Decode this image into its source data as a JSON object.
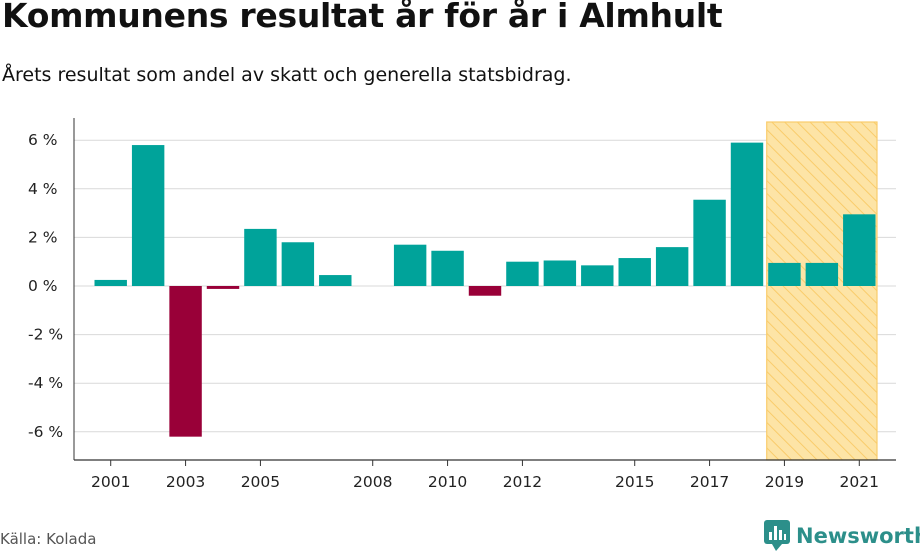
{
  "title": "Kommunens resultat år för år i Almhult",
  "subtitle": "Årets resultat som andel av skatt och generella statsbidrag.",
  "source": "Källa: Kolada",
  "brand": "Newsworthy",
  "colors": {
    "positive": "#00a39a",
    "negative": "#990038",
    "highlight_fill": "#fde4a6",
    "highlight_stripe": "#f9cc6b",
    "grid": "#d9d9d9",
    "axis": "#333333",
    "brand": "#2c8f8a"
  },
  "chart_data": {
    "type": "bar",
    "years": [
      2001,
      2002,
      2003,
      2004,
      2005,
      2006,
      2007,
      2008,
      2009,
      2010,
      2011,
      2012,
      2013,
      2014,
      2015,
      2016,
      2017,
      2018,
      2019,
      2020,
      2021
    ],
    "values": [
      0.25,
      5.8,
      -6.2,
      -0.12,
      2.35,
      1.8,
      0.45,
      null,
      1.7,
      1.45,
      -0.4,
      1.0,
      1.05,
      0.85,
      1.15,
      1.6,
      3.55,
      5.9,
      0.95,
      0.95,
      2.95
    ],
    "x_tick_labels": [
      "2001",
      "2003",
      "2005",
      "2008",
      "2010",
      "2012",
      "2015",
      "2017",
      "2019",
      "2021"
    ],
    "y_ticks": [
      6,
      4,
      2,
      0,
      -2,
      -4,
      -6
    ],
    "y_tick_labels": [
      "6 %",
      "4 %",
      "2 %",
      "0 %",
      "-2 %",
      "-4 %",
      "-6 %"
    ],
    "ylim": [
      -7,
      6.7
    ],
    "highlight_range": [
      2019,
      2021
    ],
    "grid": true
  }
}
